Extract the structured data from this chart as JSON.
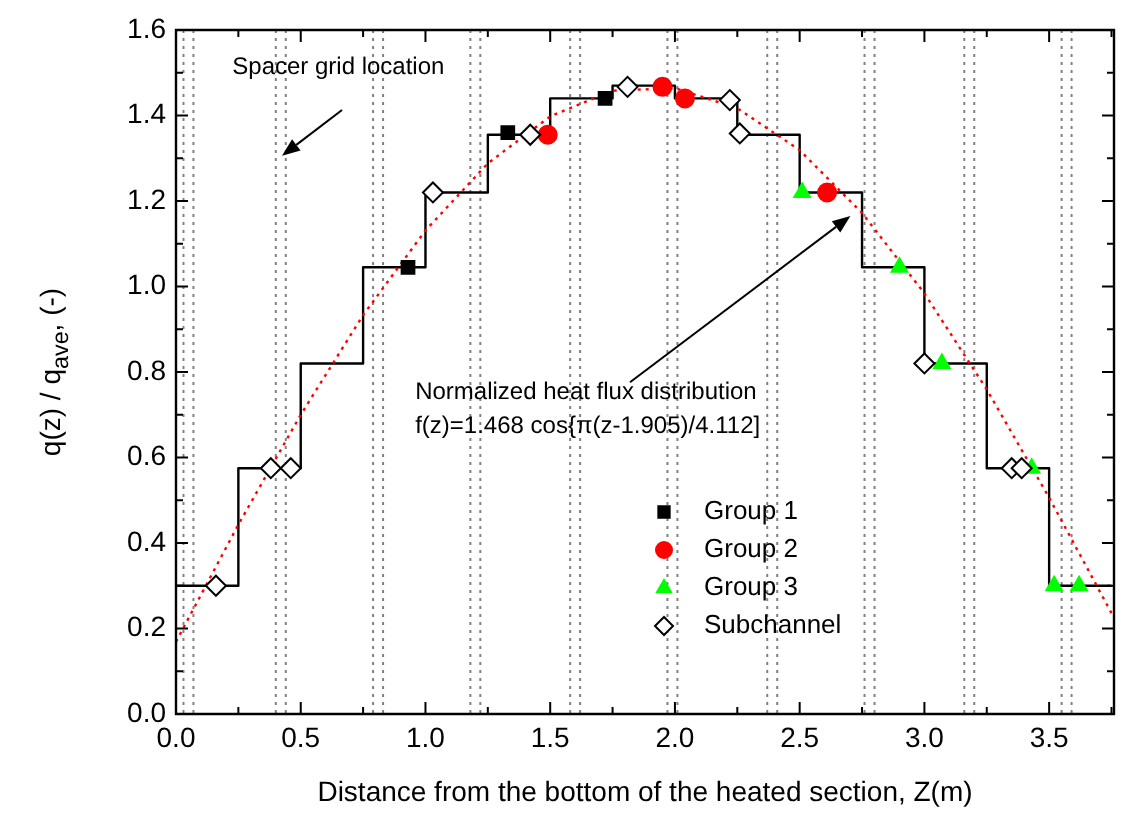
{
  "chart_data": {
    "type": "scatter",
    "xlabel": "Distance from the bottom of the heated section, Z(m)",
    "ylabel": "q(z) / q$_{ave}$, (-)",
    "xlim": [
      0,
      3.76
    ],
    "ylim": [
      0,
      1.6
    ],
    "xticks": [
      {
        "value": 0,
        "label": "0.0"
      },
      {
        "value": 0.25,
        "label": null
      },
      {
        "value": 0.5,
        "label": "0.5"
      },
      {
        "value": 0.75,
        "label": null
      },
      {
        "value": 1,
        "label": "1.0"
      },
      {
        "value": 1.25,
        "label": null
      },
      {
        "value": 1.5,
        "label": "1.5"
      },
      {
        "value": 1.75,
        "label": null
      },
      {
        "value": 2,
        "label": "2.0"
      },
      {
        "value": 2.25,
        "label": null
      },
      {
        "value": 2.5,
        "label": "2.5"
      },
      {
        "value": 2.75,
        "label": null
      },
      {
        "value": 3,
        "label": "3.0"
      },
      {
        "value": 3.25,
        "label": null
      },
      {
        "value": 3.5,
        "label": "3.5"
      },
      {
        "value": 3.75,
        "label": null
      }
    ],
    "yticks": [
      {
        "value": 0,
        "label": "0.0"
      },
      {
        "value": 0.1,
        "label": null
      },
      {
        "value": 0.2,
        "label": "0.2"
      },
      {
        "value": 0.3,
        "label": null
      },
      {
        "value": 0.4,
        "label": "0.4"
      },
      {
        "value": 0.5,
        "label": null
      },
      {
        "value": 0.6,
        "label": "0.6"
      },
      {
        "value": 0.7,
        "label": null
      },
      {
        "value": 0.8,
        "label": "0.8"
      },
      {
        "value": 0.9,
        "label": null
      },
      {
        "value": 1,
        "label": "1.0"
      },
      {
        "value": 1.1,
        "label": null
      },
      {
        "value": 1.2,
        "label": "1.2"
      },
      {
        "value": 1.3,
        "label": null
      },
      {
        "value": 1.4,
        "label": "1.4"
      },
      {
        "value": 1.5,
        "label": null
      },
      {
        "value": 1.6,
        "label": "1.6"
      }
    ],
    "grid": false,
    "legend": "bottom right",
    "annotations": [
      "Spacer grid location",
      "Normalized heat flux distribution\nf(z)=1.468 cos{π(z-1.905)/4.112]"
    ],
    "ref_lines": [
      {
        "axis": "x",
        "value": 0.03,
        "color": "#808080",
        "line_style": "dotted"
      },
      {
        "axis": "x",
        "value": 0.07,
        "color": "#808080",
        "line_style": "dotted"
      },
      {
        "axis": "x",
        "value": 0.4,
        "color": "#808080",
        "line_style": "dotted"
      },
      {
        "axis": "x",
        "value": 0.44,
        "color": "#808080",
        "line_style": "dotted"
      },
      {
        "axis": "x",
        "value": 0.79,
        "color": "#808080",
        "line_style": "dotted"
      },
      {
        "axis": "x",
        "value": 0.83,
        "color": "#808080",
        "line_style": "dotted"
      },
      {
        "axis": "x",
        "value": 1.18,
        "color": "#808080",
        "line_style": "dotted"
      },
      {
        "axis": "x",
        "value": 1.22,
        "color": "#808080",
        "line_style": "dotted"
      },
      {
        "axis": "x",
        "value": 1.58,
        "color": "#808080",
        "line_style": "dotted"
      },
      {
        "axis": "x",
        "value": 1.62,
        "color": "#808080",
        "line_style": "dotted"
      },
      {
        "axis": "x",
        "value": 1.97,
        "color": "#808080",
        "line_style": "dotted"
      },
      {
        "axis": "x",
        "value": 2.01,
        "color": "#808080",
        "line_style": "dotted"
      },
      {
        "axis": "x",
        "value": 2.37,
        "color": "#808080",
        "line_style": "dotted"
      },
      {
        "axis": "x",
        "value": 2.41,
        "color": "#808080",
        "line_style": "dotted"
      },
      {
        "axis": "x",
        "value": 2.76,
        "color": "#808080",
        "line_style": "dotted"
      },
      {
        "axis": "x",
        "value": 2.8,
        "color": "#808080",
        "line_style": "dotted"
      },
      {
        "axis": "x",
        "value": 3.16,
        "color": "#808080",
        "line_style": "dotted"
      },
      {
        "axis": "x",
        "value": 3.2,
        "color": "#808080",
        "line_style": "dotted"
      },
      {
        "axis": "x",
        "value": 3.55,
        "color": "#808080",
        "line_style": "dotted"
      },
      {
        "axis": "x",
        "value": 3.59,
        "color": "#808080",
        "line_style": "dotted"
      }
    ],
    "series": [
      {
        "type": "step",
        "color": "#000000",
        "marker": "none",
        "x": [
          0,
          0.25,
          0.5,
          0.75,
          1,
          1.25,
          1.5,
          1.75,
          2,
          2.25,
          2.5,
          2.75,
          3,
          3.25,
          3.5,
          3.75
        ],
        "values": [
          0.3,
          0.575,
          0.82,
          1.045,
          1.22,
          1.355,
          1.44,
          1.47,
          1.44,
          1.355,
          1.22,
          1.045,
          0.82,
          0.575,
          0.3,
          0.3
        ]
      },
      {
        "type": "line",
        "color": "#ff0000",
        "marker": "none",
        "line_style": "dotted",
        "x": [
          0,
          0.25,
          0.5,
          0.75,
          1,
          1.25,
          1.5,
          1.75,
          2,
          2.25,
          2.5,
          2.75,
          3,
          3.25,
          3.5,
          3.75
        ],
        "values": [
          0.169,
          0.443,
          0.7,
          0.933,
          1.131,
          1.288,
          1.398,
          1.458,
          1.464,
          1.417,
          1.319,
          1.172,
          0.984,
          0.759,
          0.506,
          0.236
        ]
      },
      {
        "name": "Group 1",
        "type": "scatter",
        "color": "#000000",
        "marker": "square",
        "x": [
          0.93,
          1.33,
          1.72
        ],
        "values": [
          1.045,
          1.36,
          1.44
        ]
      },
      {
        "name": "Group 2",
        "type": "scatter",
        "color": "#ff0000",
        "marker": "circle",
        "x": [
          1.49,
          1.95,
          2.04,
          2.61
        ],
        "values": [
          1.355,
          1.467,
          1.44,
          1.22
        ]
      },
      {
        "name": "Group 3",
        "type": "scatter",
        "color": "#00ff00",
        "marker": "triangle",
        "x": [
          2.51,
          2.9,
          3.07,
          3.43,
          3.52,
          3.62
        ],
        "values": [
          1.22,
          1.045,
          0.82,
          0.575,
          0.3,
          0.3
        ]
      },
      {
        "name": "Subchannel",
        "type": "scatter",
        "color": "#000000",
        "marker": "diamond",
        "x": [
          0.16,
          0.38,
          0.46,
          1.03,
          1.42,
          1.81,
          2.22,
          2.26,
          3.0,
          3.35,
          3.39
        ],
        "values": [
          0.3,
          0.575,
          0.575,
          1.22,
          1.355,
          1.467,
          1.436,
          1.358,
          0.82,
          0.575,
          0.575
        ]
      }
    ]
  }
}
